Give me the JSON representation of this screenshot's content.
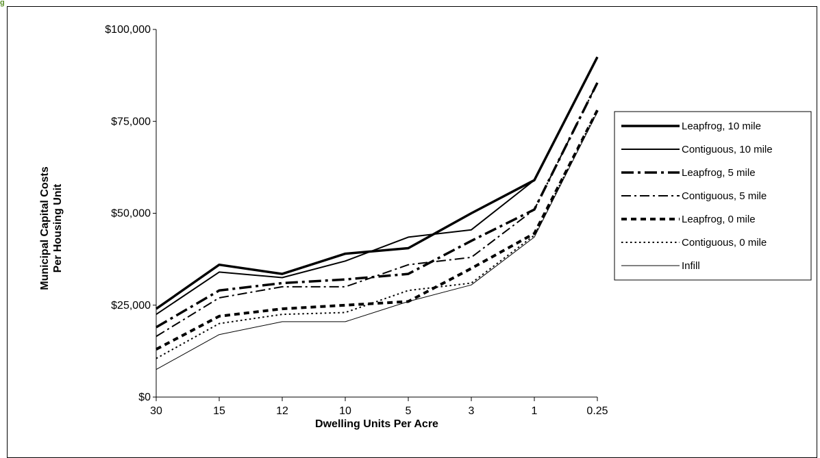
{
  "corner_mark": "g",
  "chart_data": {
    "type": "line",
    "title": "",
    "xlabel": "Dwelling Units Per Acre",
    "ylabel": "Municipal Capital Costs Per Housing Unit",
    "ylabel_lines": [
      "Municipal Capital Costs",
      "Per Housing Unit"
    ],
    "categories": [
      "30",
      "15",
      "12",
      "10",
      "5",
      "3",
      "1",
      "0.25"
    ],
    "ylim": [
      0,
      100000
    ],
    "yticks": [
      0,
      25000,
      50000,
      75000,
      100000
    ],
    "ytick_labels": [
      "$0",
      "$25,000",
      "$50,000",
      "$75,000",
      "$100,000"
    ],
    "grid": false,
    "legend_position": "right",
    "series": [
      {
        "name": "Leapfrog, 10 mile",
        "values": [
          24000,
          36000,
          33500,
          39000,
          40500,
          50000,
          59000,
          92500
        ],
        "style": "solid-heavy"
      },
      {
        "name": "Contiguous, 10 mile",
        "values": [
          22500,
          34000,
          32500,
          37000,
          43500,
          45500,
          59000,
          92500
        ],
        "style": "solid"
      },
      {
        "name": "Leapfrog, 5 mile",
        "values": [
          19000,
          29000,
          31000,
          32000,
          33500,
          42500,
          51000,
          85500
        ],
        "style": "dash-dot-heavy"
      },
      {
        "name": "Contiguous, 5 mile",
        "values": [
          16500,
          27000,
          30000,
          30000,
          36000,
          38000,
          51000,
          85500
        ],
        "style": "dash-dot"
      },
      {
        "name": "Leapfrog, 0 mile",
        "values": [
          13000,
          22000,
          24000,
          25000,
          26000,
          35000,
          44500,
          78000
        ],
        "style": "dash-heavy"
      },
      {
        "name": "Contiguous, 0 mile",
        "values": [
          10500,
          20000,
          22500,
          23000,
          29000,
          31000,
          44000,
          78000
        ],
        "style": "dot"
      },
      {
        "name": "Infill",
        "values": [
          7500,
          17000,
          20500,
          20500,
          26000,
          30500,
          43500,
          77500
        ],
        "style": "thin"
      }
    ]
  }
}
